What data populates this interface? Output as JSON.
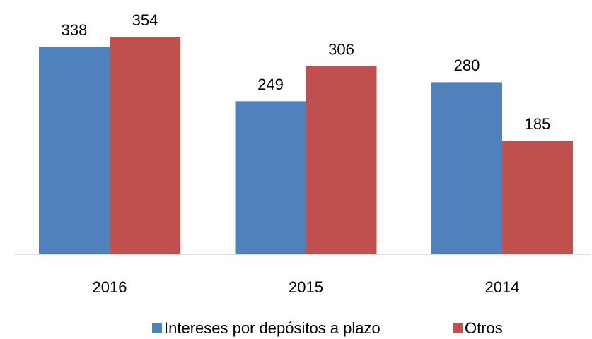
{
  "chart_data": {
    "type": "bar",
    "categories": [
      "2016",
      "2015",
      "2014"
    ],
    "series": [
      {
        "name": "Intereses por depósitos a plazo",
        "color": "#4f81bd",
        "values": [
          338,
          249,
          280
        ]
      },
      {
        "name": "Otros",
        "color": "#c0504d",
        "values": [
          354,
          306,
          185
        ]
      }
    ],
    "ylim": [
      0,
      400
    ],
    "legend": "bottom"
  }
}
